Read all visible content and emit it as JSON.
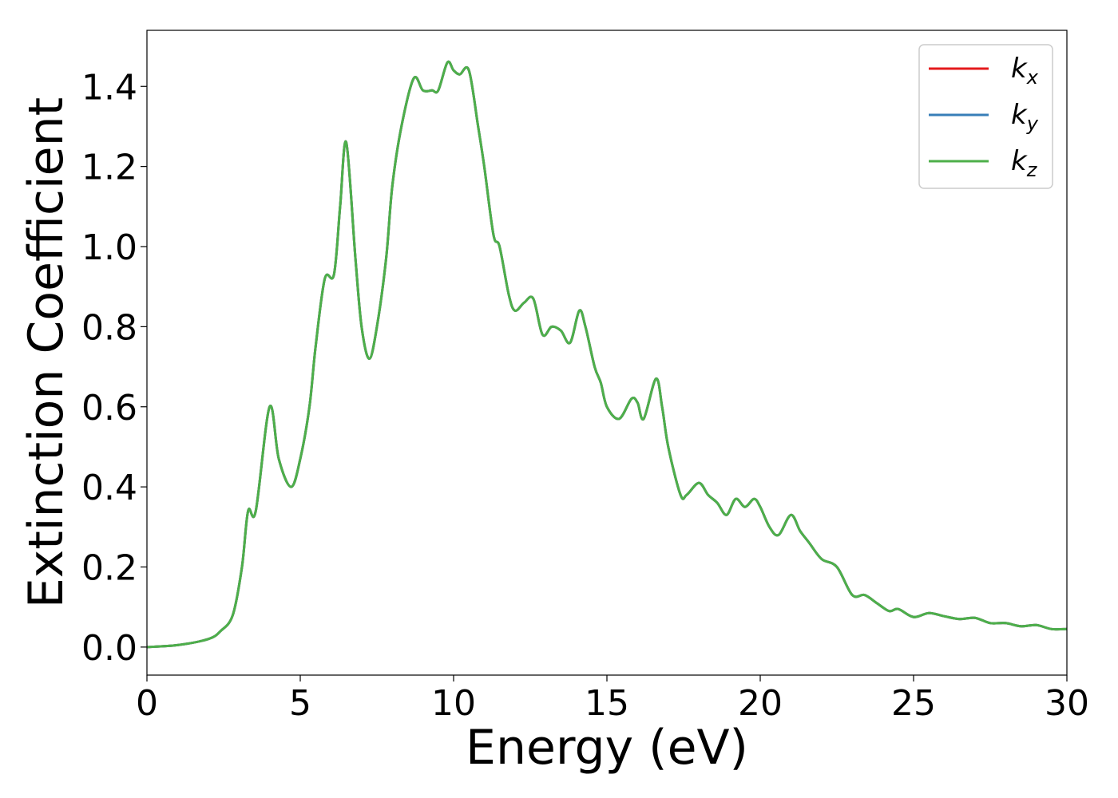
{
  "chart_data": {
    "type": "line",
    "title": "",
    "xlabel": "Energy (eV)",
    "ylabel": "Extinction Coefficient",
    "xlim": [
      0,
      30
    ],
    "ylim": [
      -0.07,
      1.54
    ],
    "xticks": [
      0,
      5,
      10,
      15,
      20,
      25,
      30
    ],
    "xtick_labels": [
      "0",
      "5",
      "10",
      "15",
      "20",
      "25",
      "30"
    ],
    "yticks": [
      0.0,
      0.2,
      0.4,
      0.6,
      0.8,
      1.0,
      1.2,
      1.4
    ],
    "ytick_labels": [
      "0.0",
      "0.2",
      "0.4",
      "0.6",
      "0.8",
      "1.0",
      "1.2",
      "1.4"
    ],
    "grid": false,
    "legend": "top-right",
    "series": [
      {
        "name": "k",
        "sub": "x",
        "color": "#e41a1c",
        "ref": "shared"
      },
      {
        "name": "k",
        "sub": "y",
        "color": "#377eb8",
        "ref": "shared"
      },
      {
        "name": "k",
        "sub": "z",
        "color": "#4daf4a",
        "ref": "shared"
      }
    ],
    "x": [
      0,
      1,
      2,
      2.4,
      2.8,
      3.1,
      3.3,
      3.55,
      4.0,
      4.3,
      4.7,
      5.0,
      5.3,
      5.5,
      5.8,
      6.1,
      6.3,
      6.5,
      6.8,
      7.0,
      7.25,
      7.5,
      7.8,
      8.0,
      8.3,
      8.7,
      9.0,
      9.3,
      9.5,
      9.8,
      10.0,
      10.2,
      10.5,
      10.8,
      11.0,
      11.3,
      11.5,
      11.8,
      12.0,
      12.3,
      12.6,
      12.9,
      13.2,
      13.5,
      13.8,
      14.1,
      14.3,
      14.6,
      14.8,
      15.0,
      15.4,
      15.8,
      16.0,
      16.2,
      16.6,
      16.8,
      17.0,
      17.4,
      17.6,
      18.0,
      18.3,
      18.6,
      18.9,
      19.2,
      19.5,
      19.8,
      20.0,
      20.3,
      20.6,
      21.0,
      21.3,
      21.6,
      22.0,
      22.5,
      23.0,
      23.4,
      23.8,
      24.2,
      24.5,
      25.0,
      25.5,
      26.0,
      26.5,
      27.0,
      27.5,
      28.0,
      28.5,
      29.0,
      29.5,
      30
    ],
    "values": [
      0.0,
      0.005,
      0.02,
      0.04,
      0.08,
      0.2,
      0.34,
      0.34,
      0.6,
      0.47,
      0.4,
      0.47,
      0.6,
      0.75,
      0.92,
      0.93,
      1.1,
      1.26,
      0.97,
      0.8,
      0.72,
      0.8,
      0.97,
      1.15,
      1.3,
      1.42,
      1.39,
      1.39,
      1.39,
      1.46,
      1.44,
      1.43,
      1.44,
      1.3,
      1.2,
      1.03,
      1.0,
      0.88,
      0.84,
      0.86,
      0.87,
      0.78,
      0.8,
      0.79,
      0.76,
      0.84,
      0.8,
      0.7,
      0.66,
      0.6,
      0.57,
      0.62,
      0.61,
      0.57,
      0.67,
      0.6,
      0.5,
      0.38,
      0.38,
      0.41,
      0.38,
      0.36,
      0.33,
      0.37,
      0.35,
      0.37,
      0.35,
      0.3,
      0.28,
      0.33,
      0.29,
      0.26,
      0.22,
      0.2,
      0.13,
      0.13,
      0.11,
      0.09,
      0.095,
      0.075,
      0.085,
      0.077,
      0.07,
      0.073,
      0.06,
      0.06,
      0.052,
      0.055,
      0.045,
      0.045
    ]
  }
}
